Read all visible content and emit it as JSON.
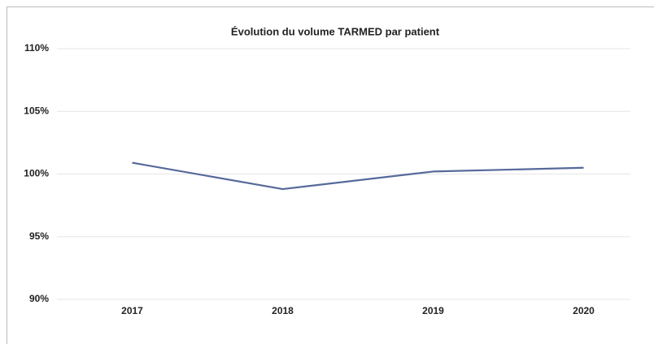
{
  "chart_data": {
    "type": "line",
    "title": "Évolution du volume TARMED par patient",
    "categories": [
      "2017",
      "2018",
      "2019",
      "2020"
    ],
    "series": [
      {
        "name": "Volume TARMED par patient",
        "color": "#56699b",
        "values": [
          100.9,
          98.8,
          100.2,
          100.5
        ]
      }
    ],
    "ylim": [
      90,
      110
    ],
    "yticks": [
      {
        "value": 90,
        "label": "90%"
      },
      {
        "value": 95,
        "label": "95%"
      },
      {
        "value": 100,
        "label": "100%"
      },
      {
        "value": 105,
        "label": "105%"
      },
      {
        "value": 110,
        "label": "110%"
      }
    ],
    "grid": true
  }
}
